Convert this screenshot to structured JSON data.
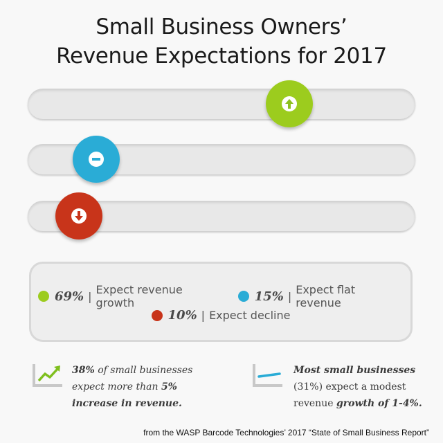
{
  "title_line1": "Small Business Owners’",
  "title_line2": "Revenue Expectations for 2017",
  "chart_data": {
    "type": "bar",
    "categories": [
      "Expect revenue growth",
      "Expect flat revenue",
      "Expect decline"
    ],
    "values": [
      69,
      15,
      10
    ],
    "value_labels": [
      "69%",
      "15%",
      "10%"
    ],
    "colors": [
      "#9ccc1e",
      "#2aacd6",
      "#c8341a"
    ],
    "icons": [
      "arrow-up-icon",
      "minus-icon",
      "arrow-down-icon"
    ],
    "xlim": [
      0,
      100
    ]
  },
  "legend": {
    "items": [
      {
        "pct": "69%",
        "sep": "|",
        "label": "Expect revenue growth",
        "color": "#9ccc1e"
      },
      {
        "pct": "15%",
        "sep": "|",
        "label": "Expect flat revenue",
        "color": "#2aacd6"
      },
      {
        "pct": "10%",
        "sep": "|",
        "label": "Expect decline",
        "color": "#c8341a"
      }
    ]
  },
  "note_left": {
    "pct": "38%",
    "line1": " of small businesses",
    "line2a": "expect more than ",
    "pct2": "5%",
    "line3": "increase in revenue."
  },
  "note_right": {
    "line1": "Most small businesses",
    "line2": "(31%) expect a modest",
    "line3a": "revenue ",
    "growth": "growth of 1-4%.",
    "accent": "#2aacd6",
    "icon_color": "#7fbf1e"
  },
  "source": "from the WASP Barcode Technologies’ 2017 “State of Small Business Report”"
}
